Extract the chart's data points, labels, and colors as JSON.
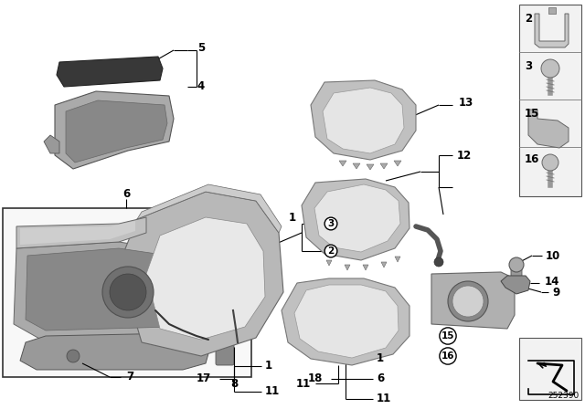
{
  "bg_color": "#ffffff",
  "diagram_number": "252390",
  "line_color": "#000000",
  "text_color": "#000000",
  "gray_light": "#c8c8c8",
  "gray_mid": "#aaaaaa",
  "gray_dark": "#808080",
  "gray_darker": "#555555",
  "gray_part": "#b8b8b8",
  "gray_inner": "#d8d8d8",
  "dark_part": "#404040",
  "right_panel_bg": "#f2f2f2",
  "inset_bg": "#f8f8f8"
}
